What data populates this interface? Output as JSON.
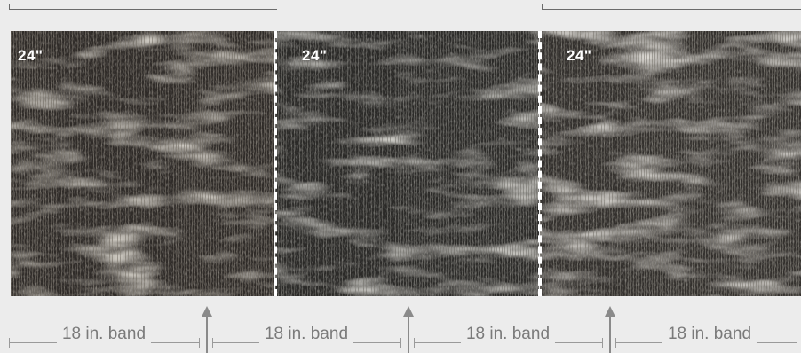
{
  "tiles": [
    {
      "label": "24\"",
      "base": "#3a3531"
    },
    {
      "label": "24\"",
      "base": "#34332f"
    },
    {
      "label": "24\"",
      "base": "#3b3835"
    }
  ],
  "bands": [
    {
      "label": "18 in. band"
    },
    {
      "label": "18 in. band"
    },
    {
      "label": "18 in. band"
    },
    {
      "label": "18 in. band"
    }
  ],
  "colors": {
    "background": "#ececec",
    "seam": "#ffffff",
    "arrow": "#8a8a8a",
    "dimension_line": "#9a9a9a",
    "band_text": "#7a7a7a"
  }
}
